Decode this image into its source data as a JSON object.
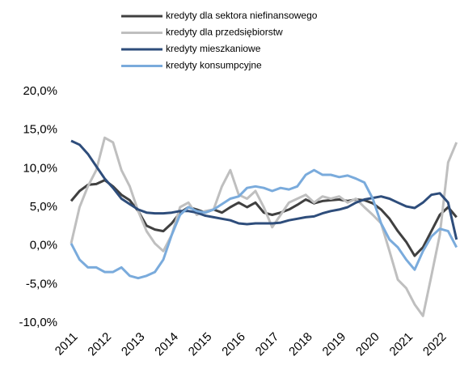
{
  "chart_data": {
    "type": "line",
    "x": [
      2011,
      2011.25,
      2011.5,
      2011.75,
      2012,
      2012.25,
      2012.5,
      2012.75,
      2013,
      2013.25,
      2013.5,
      2013.75,
      2014,
      2014.25,
      2014.5,
      2014.75,
      2015,
      2015.25,
      2015.5,
      2015.75,
      2016,
      2016.25,
      2016.5,
      2016.75,
      2017,
      2017.25,
      2017.5,
      2017.75,
      2018,
      2018.25,
      2018.5,
      2018.75,
      2019,
      2019.25,
      2019.5,
      2019.75,
      2020,
      2020.25,
      2020.5,
      2020.75,
      2021,
      2021.25,
      2021.5,
      2021.75,
      2022,
      2022.25,
      2022.5
    ],
    "series": [
      {
        "name": "kredyty dla sektora niefinansowego",
        "color": "#404040",
        "values": [
          5.8,
          7.1,
          7.9,
          8,
          8.5,
          7.7,
          6.6,
          5.9,
          4.5,
          2.6,
          2.1,
          1.9,
          2.9,
          4.3,
          5,
          4.7,
          4.3,
          4.7,
          4.3,
          5,
          5.6,
          5,
          5.6,
          4.3,
          4,
          4.3,
          4.7,
          5.3,
          6,
          5.5,
          5.8,
          5.9,
          6,
          5.8,
          6,
          5.9,
          5.5,
          4.7,
          3.5,
          1.9,
          0.5,
          -1.3,
          -0.2,
          1.9,
          4,
          5,
          3.7
        ]
      },
      {
        "name": "kredyty dla przedsiębiorstw",
        "color": "#bfbfbf",
        "values": [
          0.3,
          5,
          7.7,
          9.8,
          14,
          13.4,
          9.8,
          7.7,
          4.5,
          1.9,
          0.3,
          -0.7,
          1.4,
          5,
          5.6,
          4,
          4.5,
          4.7,
          7.7,
          9.8,
          6.6,
          6.1,
          7.1,
          5,
          2.4,
          4,
          5.6,
          6.1,
          6.6,
          5.6,
          6.4,
          6.1,
          6.4,
          5.6,
          6.1,
          5,
          4,
          2.9,
          -0.7,
          -4.4,
          -5.5,
          -7.6,
          -9.1,
          -3.9,
          1.4,
          10.8,
          13.4
        ]
      },
      {
        "name": "kredyty mieszkaniowe",
        "color": "#2e4d7b",
        "values": [
          13.6,
          13.1,
          11.9,
          10.3,
          8.7,
          7.5,
          6.1,
          5.4,
          4.7,
          4.3,
          4.2,
          4.2,
          4.3,
          4.5,
          4.5,
          4.3,
          3.9,
          3.7,
          3.5,
          3.3,
          2.9,
          2.8,
          2.9,
          2.9,
          2.9,
          3,
          3.3,
          3.5,
          3.7,
          3.8,
          4.2,
          4.5,
          4.7,
          5,
          5.6,
          6,
          6.2,
          6.4,
          6.1,
          5.6,
          5.1,
          4.9,
          5.6,
          6.6,
          6.8,
          5.6,
          0.8
        ]
      },
      {
        "name": "kredyty konsumpcyjne",
        "color": "#7aabdc",
        "values": [
          0.3,
          -1.8,
          -2.8,
          -2.8,
          -3.4,
          -3.4,
          -2.8,
          -3.9,
          -4.2,
          -3.9,
          -3.4,
          -1.8,
          1.4,
          4,
          5,
          4.5,
          4.3,
          4.7,
          5.4,
          6.1,
          6.4,
          7.5,
          7.7,
          7.5,
          7.1,
          7.5,
          7.3,
          7.7,
          9.2,
          9.8,
          9.2,
          9.2,
          8.9,
          9.1,
          8.7,
          8.2,
          6.1,
          2.9,
          0.8,
          -0.2,
          -1.8,
          -3.1,
          -0.7,
          1.2,
          2.2,
          1.9,
          -0.2
        ]
      }
    ],
    "xlim": [
      2011,
      2022.58
    ],
    "xticks": [
      2011,
      2012,
      2013,
      2014,
      2015,
      2016,
      2017,
      2018,
      2019,
      2020,
      2021,
      2022
    ],
    "ylim": [
      -10,
      20
    ],
    "yticks": [
      {
        "value": -10,
        "label": "-10,0%"
      },
      {
        "value": -5,
        "label": "-5,0%"
      },
      {
        "value": 0,
        "label": "0,0%"
      },
      {
        "value": 5,
        "label": "5,0%"
      },
      {
        "value": 10,
        "label": "10,0%"
      },
      {
        "value": 15,
        "label": "15,0%"
      },
      {
        "value": 20,
        "label": "20,0%"
      }
    ]
  }
}
